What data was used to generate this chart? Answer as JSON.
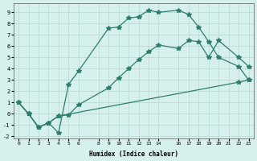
{
  "xlabel": "Humidex (Indice chaleur)",
  "bg_color": "#d6f0ee",
  "line_color": "#2e7d6e",
  "grid_color": "#b0d8d4",
  "xlim": [
    -0.5,
    23.5
  ],
  "ylim": [
    -2.2,
    9.8
  ],
  "xtick_pos": [
    0,
    1,
    2,
    3,
    4,
    5,
    6,
    8,
    9,
    10,
    11,
    12,
    13,
    14,
    16,
    17,
    18,
    19,
    20,
    21,
    22,
    23
  ],
  "xtick_labels": [
    "0",
    "1",
    "2",
    "3",
    "4",
    "5",
    "6",
    "8",
    "9",
    "10",
    "11",
    "12",
    "13",
    "14",
    "16",
    "17",
    "18",
    "19",
    "20",
    "21",
    "22",
    "23"
  ],
  "ytick_pos": [
    -2,
    -1,
    0,
    1,
    2,
    3,
    4,
    5,
    6,
    7,
    8,
    9
  ],
  "ytick_labels": [
    "-2",
    "-1",
    "0",
    "1",
    "2",
    "3",
    "4",
    "5",
    "6",
    "7",
    "8",
    "9"
  ],
  "series": [
    {
      "x": [
        0,
        1,
        2,
        3,
        4,
        5,
        6,
        9,
        10,
        11,
        12,
        13,
        14,
        16,
        17,
        18,
        19,
        20,
        22,
        23
      ],
      "y": [
        1.0,
        0.0,
        -1.2,
        -0.8,
        -1.7,
        2.6,
        3.8,
        7.6,
        7.7,
        8.5,
        8.6,
        9.2,
        9.0,
        9.2,
        8.8,
        7.7,
        6.4,
        5.0,
        4.2,
        3.0
      ]
    },
    {
      "x": [
        0,
        1,
        2,
        3,
        4,
        5,
        6,
        9,
        10,
        11,
        12,
        13,
        14,
        16,
        17,
        18,
        19,
        20,
        22,
        23
      ],
      "y": [
        1.0,
        0.0,
        -1.2,
        -0.8,
        -0.2,
        -0.1,
        0.8,
        2.3,
        3.2,
        4.0,
        4.8,
        5.5,
        6.1,
        5.8,
        6.5,
        6.4,
        5.0,
        6.5,
        5.0,
        4.2
      ]
    },
    {
      "x": [
        0,
        1,
        2,
        3,
        4,
        22,
        23
      ],
      "y": [
        1.0,
        0.0,
        -1.2,
        -0.8,
        -0.2,
        2.8,
        3.0
      ]
    }
  ]
}
